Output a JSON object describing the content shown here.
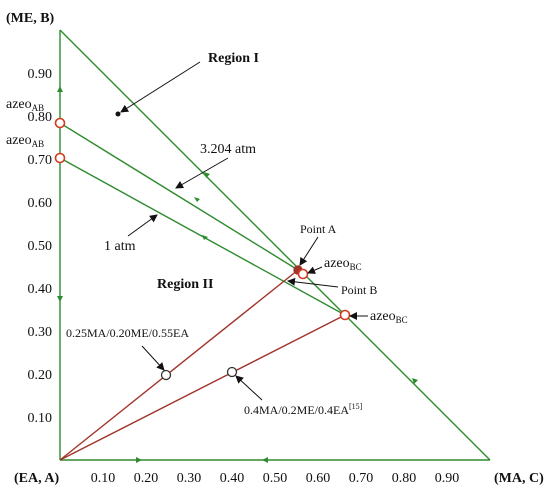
{
  "axes": {
    "origin_label": "(EA, A)",
    "x_end_label": "(MA, C)",
    "y_end_label": "(ME, B)",
    "x_ticks": [
      "0.10",
      "0.20",
      "0.30",
      "0.40",
      "0.50",
      "0.60",
      "0.70",
      "0.80",
      "0.90"
    ],
    "y_ticks": [
      "0.90",
      "0.80",
      "0.70",
      "0.60",
      "0.50",
      "0.40",
      "0.30",
      "0.20",
      "0.10"
    ]
  },
  "regions": {
    "region_1": "Region I",
    "region_2": "Region II"
  },
  "curves": {
    "high_pressure": "3.204 atm",
    "low_pressure": "1 atm"
  },
  "azeotropes": {
    "ab_upper": {
      "base": "azeo",
      "sub": "AB"
    },
    "ab_lower": {
      "base": "azeo",
      "sub": "AB"
    },
    "bc_upper": {
      "base": "azeo",
      "sub": "BC"
    },
    "bc_lower": {
      "base": "azeo",
      "sub": "BC"
    }
  },
  "points": {
    "point_a": "Point A",
    "point_b": "Point B"
  },
  "feeds": {
    "feed_1": "0.25MA/0.20ME/0.55EA",
    "feed_2": {
      "text": "0.4MA/0.2ME/0.4EA",
      "ref": "[15]"
    }
  },
  "colors": {
    "green": "#2e8b2e",
    "red_line": "#a0342a",
    "marker": "#d23a1e"
  }
}
